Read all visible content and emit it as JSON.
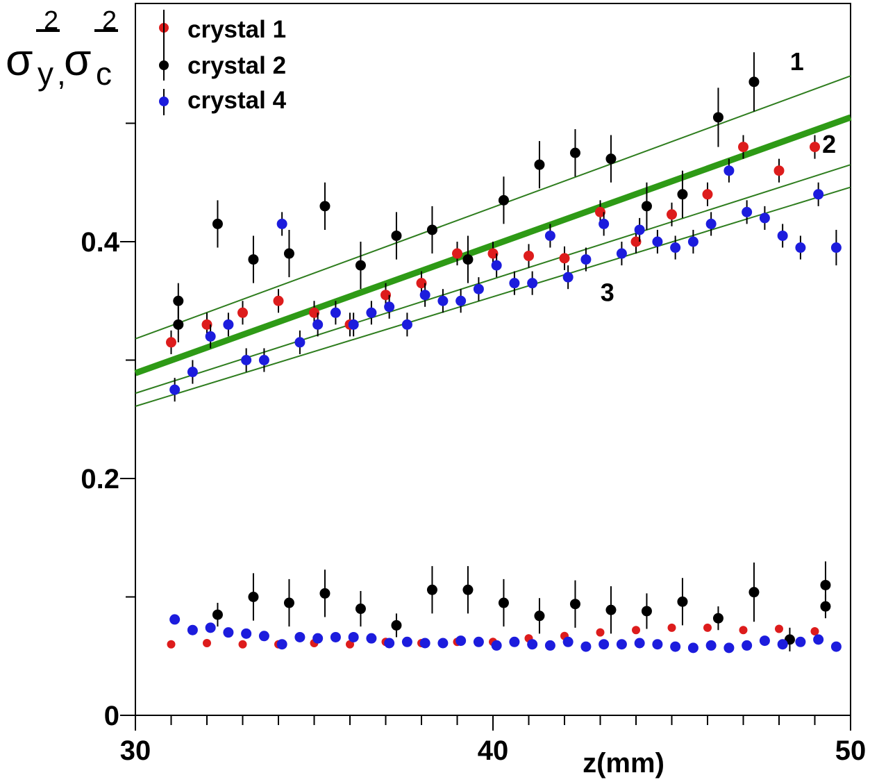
{
  "chart_data": {
    "type": "scatter",
    "title": "",
    "xlabel": "z(mm)",
    "ylabel": {
      "sym1": "σ",
      "sub1": "y",
      "sep": ",",
      "sym2": "σ",
      "sub2": "c",
      "sup": "2"
    },
    "xlim": [
      30,
      50
    ],
    "ylim": [
      0,
      0.6
    ],
    "x_ticks": [
      30,
      40,
      50
    ],
    "y_ticks": [
      0,
      0.2,
      0.4
    ],
    "y_tick_labels": [
      "0",
      "0.2",
      "0.4"
    ],
    "minor_x_step": 1,
    "minor_y_step": 0.1,
    "grid": false,
    "legend": "top-left",
    "series": [
      {
        "name": "crystal 1",
        "color": "#dd1c1c",
        "upper": {
          "x": [
            31,
            32,
            33,
            34,
            35,
            36,
            37,
            38,
            39,
            40,
            41,
            42,
            43,
            44,
            45,
            46,
            47,
            48,
            49
          ],
          "y": [
            0.315,
            0.33,
            0.34,
            0.35,
            0.34,
            0.33,
            0.355,
            0.365,
            0.39,
            0.39,
            0.388,
            0.386,
            0.425,
            0.4,
            0.423,
            0.44,
            0.48,
            0.46,
            0.48
          ],
          "err": [
            0.01,
            0.01,
            0.01,
            0.01,
            0.01,
            0.01,
            0.01,
            0.01,
            0.01,
            0.01,
            0.01,
            0.01,
            0.01,
            0.01,
            0.01,
            0.01,
            0.01,
            0.01,
            0.01
          ]
        },
        "lower": {
          "x": [
            31,
            32,
            33,
            34,
            35,
            36,
            37,
            38,
            39,
            40,
            41,
            42,
            43,
            44,
            45,
            46,
            47,
            48,
            49
          ],
          "y": [
            0.06,
            0.061,
            0.06,
            0.06,
            0.061,
            0.06,
            0.062,
            0.061,
            0.062,
            0.062,
            0.065,
            0.067,
            0.07,
            0.072,
            0.074,
            0.074,
            0.072,
            0.073,
            0.071
          ],
          "err": [
            0.002,
            0.002,
            0.002,
            0.002,
            0.002,
            0.002,
            0.002,
            0.002,
            0.002,
            0.002,
            0.002,
            0.002,
            0.002,
            0.002,
            0.002,
            0.002,
            0.002,
            0.002,
            0.002
          ]
        }
      },
      {
        "name": "crystal 2",
        "color": "#000000",
        "upper": {
          "x": [
            31.2,
            31.2,
            32.3,
            33.3,
            34.3,
            35.3,
            36.3,
            37.3,
            38.3,
            39.3,
            40.3,
            41.3,
            42.3,
            43.3,
            44.3,
            45.3,
            46.3,
            47.3
          ],
          "y": [
            0.33,
            0.35,
            0.415,
            0.385,
            0.39,
            0.43,
            0.38,
            0.405,
            0.41,
            0.385,
            0.435,
            0.465,
            0.475,
            0.47,
            0.43,
            0.44,
            0.505,
            0.535
          ],
          "err": [
            0.015,
            0.015,
            0.02,
            0.02,
            0.02,
            0.02,
            0.02,
            0.02,
            0.02,
            0.02,
            0.02,
            0.02,
            0.02,
            0.02,
            0.02,
            0.02,
            0.025,
            0.025
          ]
        },
        "lower": {
          "x": [
            32.3,
            33.3,
            34.3,
            35.3,
            36.3,
            37.3,
            38.3,
            39.3,
            40.3,
            41.3,
            42.3,
            43.3,
            44.3,
            45.3,
            46.3,
            47.3,
            48.3,
            49.3,
            49.3
          ],
          "y": [
            0.085,
            0.1,
            0.095,
            0.103,
            0.09,
            0.076,
            0.106,
            0.106,
            0.095,
            0.084,
            0.094,
            0.089,
            0.088,
            0.096,
            0.082,
            0.104,
            0.064,
            0.11,
            0.092
          ],
          "err": [
            0.01,
            0.02,
            0.02,
            0.02,
            0.015,
            0.01,
            0.02,
            0.02,
            0.02,
            0.015,
            0.02,
            0.02,
            0.015,
            0.02,
            0.01,
            0.025,
            0.01,
            0.02,
            0.01
          ]
        }
      },
      {
        "name": "crystal 4",
        "color": "#1c1cdd",
        "upper": {
          "x": [
            31.1,
            31.6,
            32.1,
            32.6,
            33.1,
            33.6,
            34.1,
            34.6,
            35.1,
            35.6,
            36.1,
            36.6,
            37.1,
            37.6,
            38.1,
            38.6,
            39.1,
            39.6,
            40.1,
            40.6,
            41.1,
            41.6,
            42.1,
            42.6,
            43.1,
            43.6,
            44.1,
            44.6,
            45.1,
            45.6,
            46.1,
            46.6,
            47.1,
            47.6,
            48.1,
            48.6,
            49.1,
            49.6
          ],
          "y": [
            0.275,
            0.29,
            0.32,
            0.33,
            0.3,
            0.3,
            0.415,
            0.315,
            0.33,
            0.34,
            0.33,
            0.34,
            0.345,
            0.33,
            0.355,
            0.35,
            0.35,
            0.36,
            0.38,
            0.365,
            0.365,
            0.405,
            0.37,
            0.385,
            0.415,
            0.39,
            0.41,
            0.4,
            0.395,
            0.4,
            0.415,
            0.46,
            0.425,
            0.42,
            0.405,
            0.395,
            0.44,
            0.395
          ],
          "err": [
            0.01,
            0.01,
            0.01,
            0.01,
            0.01,
            0.01,
            0.01,
            0.01,
            0.01,
            0.01,
            0.01,
            0.01,
            0.01,
            0.01,
            0.01,
            0.01,
            0.01,
            0.01,
            0.01,
            0.01,
            0.01,
            0.01,
            0.01,
            0.01,
            0.01,
            0.01,
            0.01,
            0.01,
            0.01,
            0.01,
            0.01,
            0.01,
            0.01,
            0.01,
            0.01,
            0.01,
            0.01,
            0.015
          ]
        },
        "lower": {
          "x": [
            31.1,
            31.6,
            32.1,
            32.6,
            33.1,
            33.6,
            34.1,
            34.6,
            35.1,
            35.6,
            36.1,
            36.6,
            37.1,
            37.6,
            38.1,
            38.6,
            39.1,
            39.6,
            40.1,
            40.6,
            41.1,
            41.6,
            42.1,
            42.6,
            43.1,
            43.6,
            44.1,
            44.6,
            45.1,
            45.6,
            46.1,
            46.6,
            47.1,
            47.6,
            48.1,
            48.6,
            49.1,
            49.6
          ],
          "y": [
            0.081,
            0.072,
            0.074,
            0.07,
            0.069,
            0.067,
            0.06,
            0.066,
            0.065,
            0.066,
            0.066,
            0.065,
            0.061,
            0.062,
            0.061,
            0.061,
            0.063,
            0.062,
            0.059,
            0.062,
            0.06,
            0.059,
            0.062,
            0.058,
            0.06,
            0.06,
            0.061,
            0.06,
            0.058,
            0.057,
            0.059,
            0.057,
            0.059,
            0.063,
            0.06,
            0.062,
            0.064,
            0.058
          ],
          "err": [
            0.002,
            0.002,
            0.002,
            0.002,
            0.002,
            0.002,
            0.002,
            0.002,
            0.002,
            0.002,
            0.002,
            0.002,
            0.002,
            0.002,
            0.002,
            0.002,
            0.002,
            0.002,
            0.002,
            0.002,
            0.002,
            0.002,
            0.002,
            0.002,
            0.002,
            0.002,
            0.002,
            0.002,
            0.002,
            0.002,
            0.002,
            0.002,
            0.002,
            0.002,
            0.002,
            0.002,
            0.002,
            0.002
          ]
        }
      }
    ],
    "lines": [
      {
        "label": "1",
        "x": [
          30,
          50
        ],
        "y": [
          0.318,
          0.54
        ],
        "color": "#2e7d1e",
        "weight": "thin",
        "label_at": [
          48.5,
          0.545
        ]
      },
      {
        "label": "2",
        "x": [
          30,
          50
        ],
        "y": [
          0.289,
          0.505
        ],
        "color": "#2e9a16",
        "weight": "thick",
        "label_at": [
          49.4,
          0.475
        ]
      },
      {
        "label": "",
        "x": [
          30,
          50
        ],
        "y": [
          0.272,
          0.465
        ],
        "color": "#2e7d1e",
        "weight": "thin"
      },
      {
        "label": "3",
        "x": [
          30,
          50
        ],
        "y": [
          0.261,
          0.446
        ],
        "color": "#2e7d1e",
        "weight": "thin",
        "label_at": [
          43.2,
          0.35
        ]
      }
    ]
  }
}
